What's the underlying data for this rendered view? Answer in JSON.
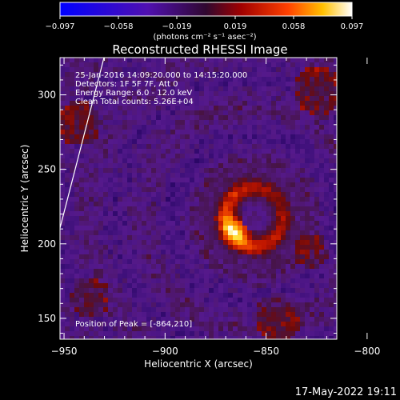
{
  "colorbar": {
    "ticks": [
      "−0.097",
      "−0.058",
      "−0.019",
      "0.019",
      "0.058",
      "0.097"
    ],
    "units": "(photons cm⁻² s⁻¹ asec⁻²)"
  },
  "chart_data": {
    "type": "heatmap",
    "title": "Reconstructed RHESSI Image",
    "xlabel": "Heliocentric X (arcsec)",
    "ylabel": "Heliocentric Y (arcsec)",
    "xlim": [
      -952,
      -815
    ],
    "ylim": [
      136,
      325
    ],
    "xticks": [
      -950,
      -900,
      -850,
      -800
    ],
    "yticks": [
      150,
      200,
      250,
      300
    ],
    "xtick_labels": [
      "−950",
      "−900",
      "−850",
      "−800"
    ],
    "ytick_labels": [
      "150",
      "200",
      "250",
      "300"
    ],
    "clim": [
      -0.097,
      0.097
    ],
    "colormap": "blue-purple-red-yellow-white",
    "peak": [
      -864,
      210
    ],
    "source_center": [
      -856,
      218
    ],
    "info_lines": [
      "25-Jan-2016 14:09:20.000 to 14:15:20.000",
      "Detectors: 1F 5F 7F, Att 0",
      "Energy Range: 6.0 - 12.0 keV",
      "Clean    Total counts: 5.26E+04"
    ],
    "peak_label": "Position of Peak = [-864,210]"
  },
  "footer": {
    "date": "17-May-2022 19:11"
  }
}
